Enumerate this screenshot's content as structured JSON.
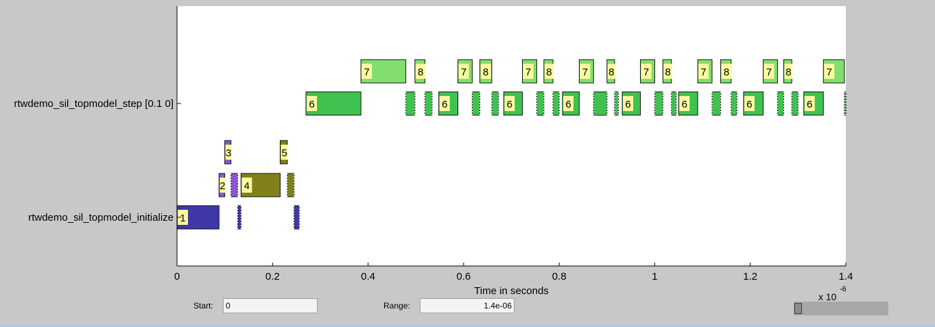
{
  "chart_data": {
    "type": "timeline",
    "xlabel": "Time in seconds",
    "xlim": [
      0,
      1.4
    ],
    "xticks": [
      0,
      0.2,
      0.4,
      0.6,
      0.8,
      1,
      1.2,
      1.4
    ],
    "xtick_labels": [
      "0",
      "0.2",
      "0.4",
      "0.6",
      "0.8",
      "1",
      "1.2",
      "1.4"
    ],
    "scale_multiplier": "x 10",
    "scale_exponent": "-6",
    "tasks": [
      {
        "name": "rtwdemo_sil_topmodel_step [0.1 0]",
        "lane": "step"
      },
      {
        "name": "rtwdemo_sil_topmodel_initialize",
        "lane": "init"
      }
    ],
    "colors": {
      "1": "#3f37a8",
      "2": "#8c55d2",
      "3": "#8c55d2",
      "4": "#808118",
      "5": "#808118",
      "6": "#3fc24f",
      "7": "#82df6d",
      "8": "#82df6d",
      "label_bg": "#fbfa9f",
      "axis": "#000000",
      "plot_bg": "#ffffff"
    },
    "segments": [
      {
        "row": 1,
        "id": "1",
        "start": 0.0,
        "end": 0.088,
        "label": "1"
      },
      {
        "row": 1,
        "id": "1",
        "start": 0.127,
        "end": 0.134
      },
      {
        "row": 1,
        "id": "1",
        "start": 0.245,
        "end": 0.256
      },
      {
        "row": 2,
        "id": "2",
        "start": 0.088,
        "end": 0.1,
        "label": "2"
      },
      {
        "row": 2,
        "id": "2",
        "start": 0.113,
        "end": 0.127
      },
      {
        "row": 2,
        "id": "4",
        "start": 0.134,
        "end": 0.216,
        "label": "4"
      },
      {
        "row": 2,
        "id": "4",
        "start": 0.231,
        "end": 0.245
      },
      {
        "row": 3,
        "id": "3",
        "start": 0.1,
        "end": 0.113,
        "label": "3"
      },
      {
        "row": 3,
        "id": "5",
        "start": 0.216,
        "end": 0.231,
        "label": "5"
      },
      {
        "row": 4,
        "id": "6",
        "start": 0.27,
        "end": 0.385,
        "label": "6"
      },
      {
        "row": 4,
        "id": "6",
        "start": 0.479,
        "end": 0.498
      },
      {
        "row": 4,
        "id": "6",
        "start": 0.519,
        "end": 0.534
      },
      {
        "row": 4,
        "id": "6",
        "start": 0.548,
        "end": 0.588,
        "label": "6"
      },
      {
        "row": 4,
        "id": "6",
        "start": 0.618,
        "end": 0.634
      },
      {
        "row": 4,
        "id": "6",
        "start": 0.659,
        "end": 0.673
      },
      {
        "row": 4,
        "id": "6",
        "start": 0.684,
        "end": 0.723,
        "label": "6"
      },
      {
        "row": 4,
        "id": "6",
        "start": 0.753,
        "end": 0.768
      },
      {
        "row": 4,
        "id": "6",
        "start": 0.787,
        "end": 0.8
      },
      {
        "row": 4,
        "id": "6",
        "start": 0.807,
        "end": 0.842,
        "label": "6"
      },
      {
        "row": 4,
        "id": "6",
        "start": 0.872,
        "end": 0.9
      },
      {
        "row": 4,
        "id": "6",
        "start": 0.916,
        "end": 0.924
      },
      {
        "row": 4,
        "id": "6",
        "start": 0.932,
        "end": 0.97,
        "label": "6"
      },
      {
        "row": 4,
        "id": "6",
        "start": 1.0,
        "end": 1.017
      },
      {
        "row": 4,
        "id": "6",
        "start": 1.035,
        "end": 1.045
      },
      {
        "row": 4,
        "id": "6",
        "start": 1.05,
        "end": 1.09,
        "label": "6"
      },
      {
        "row": 4,
        "id": "6",
        "start": 1.12,
        "end": 1.138
      },
      {
        "row": 4,
        "id": "6",
        "start": 1.16,
        "end": 1.172
      },
      {
        "row": 4,
        "id": "6",
        "start": 1.186,
        "end": 1.227,
        "label": "6"
      },
      {
        "row": 4,
        "id": "6",
        "start": 1.257,
        "end": 1.27
      },
      {
        "row": 4,
        "id": "6",
        "start": 1.287,
        "end": 1.3
      },
      {
        "row": 4,
        "id": "6",
        "start": 1.312,
        "end": 1.353,
        "label": "6"
      },
      {
        "row": 4,
        "id": "6",
        "start": 1.397,
        "end": 1.4
      },
      {
        "row": 5,
        "id": "7",
        "start": 0.385,
        "end": 0.479,
        "label": "7"
      },
      {
        "row": 5,
        "id": "8",
        "start": 0.498,
        "end": 0.519,
        "label": "8"
      },
      {
        "row": 5,
        "id": "7",
        "start": 0.588,
        "end": 0.618,
        "label": "7"
      },
      {
        "row": 5,
        "id": "8",
        "start": 0.634,
        "end": 0.659,
        "label": "8"
      },
      {
        "row": 5,
        "id": "7",
        "start": 0.723,
        "end": 0.753,
        "label": "7"
      },
      {
        "row": 5,
        "id": "8",
        "start": 0.768,
        "end": 0.787,
        "label": "8"
      },
      {
        "row": 5,
        "id": "7",
        "start": 0.842,
        "end": 0.872,
        "label": "7"
      },
      {
        "row": 5,
        "id": "8",
        "start": 0.9,
        "end": 0.916,
        "label": "8"
      },
      {
        "row": 5,
        "id": "7",
        "start": 0.97,
        "end": 1.0,
        "label": "7"
      },
      {
        "row": 5,
        "id": "8",
        "start": 1.017,
        "end": 1.035,
        "label": "8"
      },
      {
        "row": 5,
        "id": "7",
        "start": 1.09,
        "end": 1.12,
        "label": "7"
      },
      {
        "row": 5,
        "id": "8",
        "start": 1.138,
        "end": 1.16,
        "label": "8"
      },
      {
        "row": 5,
        "id": "7",
        "start": 1.227,
        "end": 1.257,
        "label": "7"
      },
      {
        "row": 5,
        "id": "8",
        "start": 1.27,
        "end": 1.287,
        "label": "8"
      },
      {
        "row": 5,
        "id": "7",
        "start": 1.353,
        "end": 1.397,
        "label": "7"
      }
    ]
  },
  "controls": {
    "start_label": "Start:",
    "start_value": "0",
    "range_label": "Range:",
    "range_value": "1.4e-06"
  }
}
